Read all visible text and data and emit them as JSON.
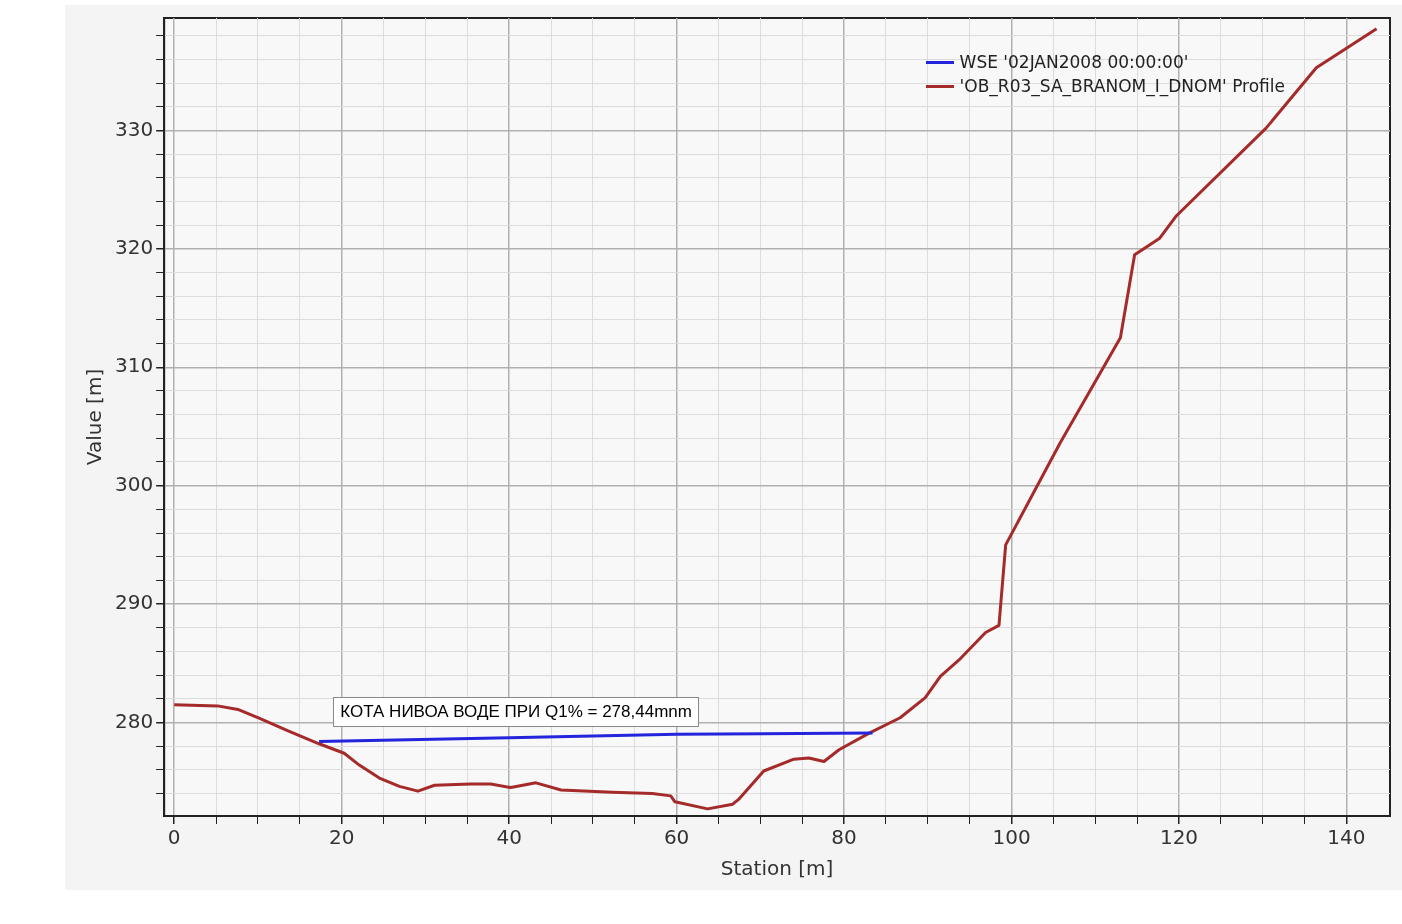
{
  "chart_data": {
    "type": "line",
    "xlabel": "Station [m]",
    "ylabel": "Value [m]",
    "xlim": [
      -1.2,
      145.2
    ],
    "ylim": [
      272.1,
      339.5
    ],
    "xticks": [
      0,
      {
        "value": 5,
        "label": null
      },
      {
        "value": 10,
        "label": null
      },
      {
        "value": 15,
        "label": null
      },
      20,
      {
        "value": 25,
        "label": null
      },
      {
        "value": 30,
        "label": null
      },
      {
        "value": 35,
        "label": null
      },
      40,
      {
        "value": 45,
        "label": null
      },
      {
        "value": 50,
        "label": null
      },
      {
        "value": 55,
        "label": null
      },
      60,
      {
        "value": 65,
        "label": null
      },
      {
        "value": 70,
        "label": null
      },
      {
        "value": 75,
        "label": null
      },
      80,
      {
        "value": 85,
        "label": null
      },
      {
        "value": 90,
        "label": null
      },
      {
        "value": 95,
        "label": null
      },
      100,
      {
        "value": 105,
        "label": null
      },
      {
        "value": 110,
        "label": null
      },
      {
        "value": 115,
        "label": null
      },
      120,
      {
        "value": 125,
        "label": null
      },
      {
        "value": 130,
        "label": null
      },
      {
        "value": 135,
        "label": null
      },
      140
    ],
    "yticks": [
      {
        "value": 274,
        "label": null
      },
      {
        "value": 276,
        "label": null
      },
      {
        "value": 278,
        "label": null
      },
      280,
      {
        "value": 282,
        "label": null
      },
      {
        "value": 284,
        "label": null
      },
      {
        "value": 286,
        "label": null
      },
      {
        "value": 288,
        "label": null
      },
      290,
      {
        "value": 292,
        "label": null
      },
      {
        "value": 294,
        "label": null
      },
      {
        "value": 296,
        "label": null
      },
      {
        "value": 298,
        "label": null
      },
      300,
      {
        "value": 302,
        "label": null
      },
      {
        "value": 304,
        "label": null
      },
      {
        "value": 306,
        "label": null
      },
      {
        "value": 308,
        "label": null
      },
      310,
      {
        "value": 312,
        "label": null
      },
      {
        "value": 314,
        "label": null
      },
      {
        "value": 316,
        "label": null
      },
      {
        "value": 318,
        "label": null
      },
      320,
      {
        "value": 322,
        "label": null
      },
      {
        "value": 324,
        "label": null
      },
      {
        "value": 326,
        "label": null
      },
      {
        "value": 328,
        "label": null
      },
      330,
      {
        "value": 332,
        "label": null
      },
      {
        "value": 334,
        "label": null
      },
      {
        "value": 336,
        "label": null
      },
      {
        "value": 338,
        "label": null
      }
    ],
    "grid": true,
    "legend": "top right",
    "marker": "none",
    "line_style": "solid",
    "series": [
      {
        "name": "WSE '02JAN2008 00:00:00'",
        "color": "#2424dc",
        "x": [
          17.3,
          40,
          60,
          83.4
        ],
        "values": [
          278.4,
          278.7,
          279,
          279.1
        ]
      },
      {
        "name": "'OB_R03_SA_BRANOM_I_DNOM' Profile",
        "color": "#a52a2a",
        "x": [
          0,
          5.2,
          7.6,
          10,
          13.6,
          17.3,
          20.3,
          22.1,
          24.5,
          26.9,
          29.1,
          31.1,
          35.4,
          37.8,
          40.2,
          43.2,
          46.2,
          52.3,
          57.1,
          59.3,
          59.8,
          63.7,
          66.7,
          67.4,
          70.4,
          74,
          75.8,
          77.6,
          79.4,
          83,
          86.7,
          89.7,
          91.5,
          93.9,
          96.9,
          98.5,
          99.3,
          105.8,
          113,
          114.7,
          117.7,
          119.7,
          130.4,
          136.4,
          143.6
        ],
        "values": [
          281.5,
          281.4,
          281.1,
          280.4,
          279.3,
          278.2,
          277.4,
          276.4,
          275.3,
          274.6,
          274.2,
          274.7,
          274.8,
          274.8,
          274.5,
          274.9,
          274.3,
          274.1,
          274,
          273.8,
          273.3,
          272.7,
          273.1,
          273.5,
          275.9,
          276.9,
          277,
          276.7,
          277.7,
          279.1,
          280.4,
          282.1,
          283.9,
          285.4,
          287.6,
          288.2,
          295,
          303.6,
          312.5,
          319.5,
          320.9,
          322.8,
          330.2,
          335.3,
          338.6
        ]
      }
    ],
    "annotations": [
      {
        "text": "КОТА НИВОА ВОДЕ ПРИ Q1% = 278,44mnm",
        "x": 19,
        "y": 278.44
      }
    ]
  }
}
